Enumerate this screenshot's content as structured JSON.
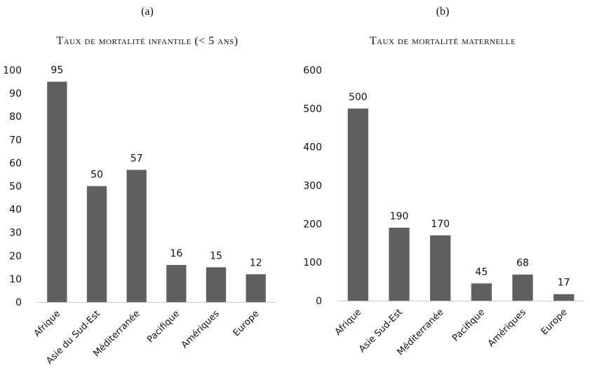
{
  "chart_data": [
    {
      "type": "bar",
      "panel_label": "(a)",
      "title": "Taux de mortalité infantile (< 5 ans)",
      "categories": [
        "Afrique",
        "Asie du Sud-Est",
        "Méditerranée",
        "Pacifique",
        "Amériques",
        "Europe"
      ],
      "values": [
        95,
        50,
        57,
        16,
        15,
        12
      ],
      "ylim": [
        0,
        100
      ],
      "yticks": [
        0,
        10,
        20,
        30,
        40,
        50,
        60,
        70,
        80,
        90,
        100
      ],
      "grid": false,
      "bar_color": "#606060"
    },
    {
      "type": "bar",
      "panel_label": "(b)",
      "title": "Taux de mortalité maternelle",
      "categories": [
        "Afrique",
        "Asie Sud-Est",
        "Méditerranée",
        "Pacifique",
        "Amériques",
        "Europe"
      ],
      "values": [
        500,
        190,
        170,
        45,
        68,
        17
      ],
      "ylim": [
        0,
        600
      ],
      "yticks": [
        0,
        100,
        200,
        300,
        400,
        500,
        600
      ],
      "grid": false,
      "bar_color": "#606060"
    }
  ]
}
